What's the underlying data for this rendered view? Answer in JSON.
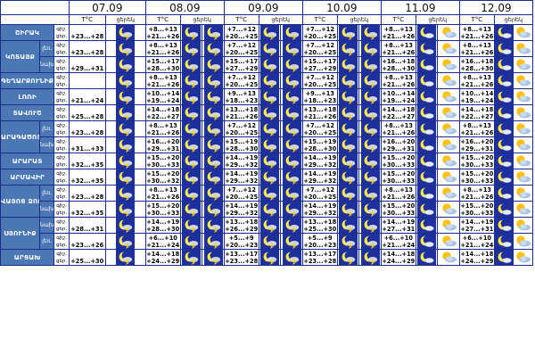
{
  "dates": [
    "07.09",
    "08.09",
    "09.09",
    "10.09",
    "11.09",
    "12.09"
  ],
  "header": {
    "temp": "T°C",
    "day": "ցերեկ",
    "night": "գիշ․",
    "dayshort": "ցեր.",
    "daynight": "գիշ․ ցեր."
  },
  "rows": [
    {
      "region": "ՇԻՐԱԿ",
      "sub": "",
      "t": [
        [
          "",
          "+23...+28"
        ],
        [
          "+8...+13",
          "+21...+26"
        ],
        [
          "+7...+12",
          "+20...+25"
        ],
        [
          "+7...+12",
          "+20...+25"
        ],
        [
          "+8...+13",
          "+21...+26"
        ],
        [
          "+8...+13",
          "+21...+26"
        ]
      ]
    },
    {
      "region": "ԿՈՏԱՅՔ",
      "sub": "լեռ.",
      "t": [
        [
          "",
          "+23...+28"
        ],
        [
          "+8...+13",
          "+21...+26"
        ],
        [
          "+7...+12",
          "+20...+25"
        ],
        [
          "+7...+12",
          "+20...+25"
        ],
        [
          "+8...+13",
          "+21...+26"
        ],
        [
          "+8...+13",
          "+21...+26"
        ]
      ]
    },
    {
      "region": "",
      "sub": "նախ.",
      "t": [
        [
          "",
          "+29...+31"
        ],
        [
          "+15...+17",
          "+28...+30"
        ],
        [
          "+15...+17",
          "+27...+29"
        ],
        [
          "+15...+17",
          "+27...+29"
        ],
        [
          "+16...+18",
          "+28...+30"
        ],
        [
          "+16...+18",
          "+28...+30"
        ]
      ]
    },
    {
      "region": "ԳԵՂԱՐՔՈՒՆԻՔ",
      "sub": "",
      "t": [
        [
          "",
          ""
        ],
        [
          "+8...+13",
          "+21...+26"
        ],
        [
          "+7...+12",
          "+20...+25"
        ],
        [
          "+7...+12",
          "+20...+25"
        ],
        [
          "+8...+13",
          "+21...+26"
        ],
        [
          "+8...+13",
          "+21...+26"
        ]
      ]
    },
    {
      "region": "ԼՈՌԻ",
      "sub": "",
      "t": [
        [
          "",
          "+21...+24"
        ],
        [
          "+10...+14",
          "+19...+24"
        ],
        [
          "+9...+13",
          "+18...+23"
        ],
        [
          "+9...+13",
          "+18...+23"
        ],
        [
          "+10...+14",
          "+19...+24"
        ],
        [
          "+10...+14",
          "+19...+24"
        ]
      ]
    },
    {
      "region": "ՏԱՎՈՒՇ",
      "sub": "",
      "t": [
        [
          "",
          "+25...+28"
        ],
        [
          "+14...+18",
          "+22...+27"
        ],
        [
          "+13...+18",
          "+21...+26"
        ],
        [
          "+13...+18",
          "+21...+26"
        ],
        [
          "+14...+18",
          "+22...+27"
        ],
        [
          "+14...+18",
          "+22...+27"
        ]
      ]
    },
    {
      "region": "ԱՐԱԳԱԾՈՏՆ",
      "sub": "լեռ.",
      "t": [
        [
          "",
          "+23...+28"
        ],
        [
          "+8...+13",
          "+21...+26"
        ],
        [
          "+7...+12",
          "+20...+25"
        ],
        [
          "+7...+12",
          "+20...+25"
        ],
        [
          "+8...+13",
          "+21...+26"
        ],
        [
          "+8...+13",
          "+21...+26"
        ]
      ]
    },
    {
      "region": "",
      "sub": "նախ.",
      "t": [
        [
          "",
          "+31...+33"
        ],
        [
          "+16...+20",
          "+29...+31"
        ],
        [
          "+15...+19",
          "+28...+30"
        ],
        [
          "+15...+19",
          "+28...+30"
        ],
        [
          "+16...+20",
          "+29...+31"
        ],
        [
          "+16...+20",
          "+29...+31"
        ]
      ]
    },
    {
      "region": "ԱՐԱՐԱՏ",
      "sub": "",
      "t": [
        [
          "",
          "+32...+35"
        ],
        [
          "+15...+20",
          "+30...+33"
        ],
        [
          "+14...+19",
          "+29...+32"
        ],
        [
          "+14...+19",
          "+29...+32"
        ],
        [
          "+15...+20",
          "+30...+33"
        ],
        [
          "+15...+20",
          "+30...+33"
        ]
      ]
    },
    {
      "region": "ԱՐՄԱՎԻՐ",
      "sub": "",
      "t": [
        [
          "",
          "+32...+35"
        ],
        [
          "+15...+20",
          "+30...+32"
        ],
        [
          "+14...+19",
          "+29...+32"
        ],
        [
          "+14...+19",
          "+29...+32"
        ],
        [
          "+15...+20",
          "+30...+33"
        ],
        [
          "+15...+20",
          "+30...+33"
        ]
      ]
    },
    {
      "region": "ՎԱՅՈՑ ՁՈՐ",
      "sub": "լեռ.",
      "t": [
        [
          "",
          "+23...+28"
        ],
        [
          "+8...+13",
          "+21...+26"
        ],
        [
          "+7...+12",
          "+20...+25"
        ],
        [
          "+7...+12",
          "+20...+25"
        ],
        [
          "+8...+13",
          "+21...+26"
        ],
        [
          "+8...+13",
          "+21...+26"
        ]
      ]
    },
    {
      "region": "",
      "sub": "նախ.",
      "t": [
        [
          "",
          "+32...+35"
        ],
        [
          "+15...+20",
          "+30...+33"
        ],
        [
          "+14...+19",
          "+29...+32"
        ],
        [
          "+14...+19",
          "+29...+32"
        ],
        [
          "+15...+20",
          "+30...+33"
        ],
        [
          "+15...+20",
          "+30...+33"
        ]
      ]
    },
    {
      "region": "ՍՅՈՒՆԻՔ",
      "sub": "նախ.",
      "t": [
        [
          "",
          "+28...+31"
        ],
        [
          "+14...+19",
          "+28...+30"
        ],
        [
          "+13...+18",
          "+26...+29"
        ],
        [
          "+13...+18",
          "+25...+30"
        ],
        [
          "+14...+19",
          "+27...+31"
        ],
        [
          "+14...+19",
          "+27...+31"
        ]
      ]
    },
    {
      "region": "",
      "sub": "լեռ.",
      "t": [
        [
          "",
          "+23...+26"
        ],
        [
          "+6...+10",
          "+21...+24"
        ],
        [
          "+5...+9",
          "+20...+23"
        ],
        [
          "+5...+9",
          "+20...+23"
        ],
        [
          "+6...+10",
          "+21...+24"
        ],
        [
          "+6...+10",
          "+21...+24"
        ]
      ]
    },
    {
      "region": "ԱՐՑԱԽ",
      "sub": "",
      "t": [
        [
          "",
          "+25...+30"
        ],
        [
          "+14...+18",
          "+24...+29"
        ],
        [
          "+13...+17",
          "+23...+28"
        ],
        [
          "+13...+17",
          "+23...+28"
        ],
        [
          "+14...+18",
          "+24...+29"
        ],
        [
          "+14...+18",
          "+24...+29"
        ]
      ]
    }
  ],
  "icons": {
    "night_storm": "moon-storm-icon",
    "day_storm": "sun-storm-icon",
    "night_cloud": "moon-cloud-icon",
    "day_cloud": "sun-cloud-icon"
  }
}
